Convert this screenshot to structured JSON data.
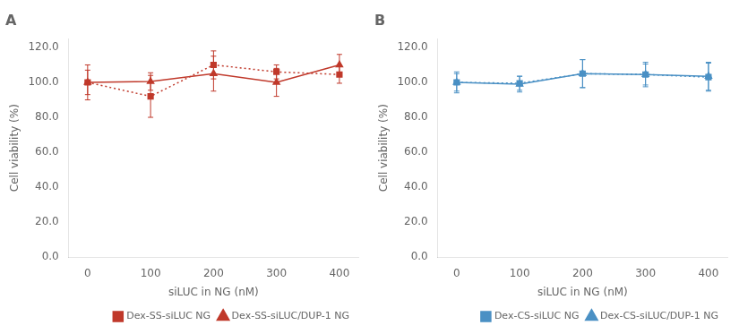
{
  "chart_data": [
    {
      "type": "line",
      "title": "A",
      "x": [
        0,
        100,
        200,
        300,
        400
      ],
      "xlabel": "siLUC in NG (nM)",
      "ylabel": "Cell viability (%)",
      "xlim": [
        -30,
        430
      ],
      "xticks": [
        0,
        100,
        200,
        300,
        400
      ],
      "ylim": [
        0.0,
        125.0
      ],
      "yticks": [
        {
          "value": 0,
          "label": "0.0"
        },
        {
          "value": 20,
          "label": "20.0"
        },
        {
          "value": 40,
          "label": "40.0"
        },
        {
          "value": 60,
          "label": "60.0"
        },
        {
          "value": 80,
          "label": "80.0"
        },
        {
          "value": 100,
          "label": "100.0"
        },
        {
          "value": 120,
          "label": "120.0"
        }
      ],
      "grid": false,
      "legend": "lower right",
      "series": [
        {
          "name": "Dex-SS-siLUC NG",
          "color": "#c0392b",
          "marker": "square",
          "line_style": "dotted",
          "values": [
            100.0,
            92.0,
            110.0,
            106.0,
            104.5
          ],
          "yerr": [
            10.0,
            12.0,
            8.0,
            4.0,
            5.0
          ]
        },
        {
          "name": "Dex-SS-siLUC/DUP-1 NG",
          "color": "#c0392b",
          "marker": "triangle",
          "line_style": "solid",
          "values": [
            100.0,
            100.5,
            105.0,
            100.0,
            110.0
          ],
          "yerr": [
            7.0,
            5.0,
            10.0,
            8.0,
            6.0
          ]
        }
      ]
    },
    {
      "type": "line",
      "title": "B",
      "x": [
        0,
        100,
        200,
        300,
        400
      ],
      "xlabel": "siLUC in NG (nM)",
      "ylabel": "Cell viability (%)",
      "xlim": [
        -30,
        430
      ],
      "xticks": [
        0,
        100,
        200,
        300,
        400
      ],
      "ylim": [
        0.0,
        125.0
      ],
      "yticks": [
        {
          "value": 0,
          "label": "0.0"
        },
        {
          "value": 20,
          "label": "20.0"
        },
        {
          "value": 40,
          "label": "40.0"
        },
        {
          "value": 60,
          "label": "60.0"
        },
        {
          "value": 80,
          "label": "80.0"
        },
        {
          "value": 100,
          "label": "100.0"
        },
        {
          "value": 120,
          "label": "120.0"
        }
      ],
      "grid": false,
      "legend": "lower right",
      "series": [
        {
          "name": "Dex-CS-siLUC NG",
          "color": "#4a90c4",
          "marker": "square",
          "line_style": "dotted",
          "values": [
            100.0,
            99.5,
            105.0,
            104.5,
            103.0
          ],
          "yerr": [
            6.0,
            4.0,
            8.0,
            6.0,
            8.0
          ]
        },
        {
          "name": "Dex-CS-siLUC/DUP-1 NG",
          "color": "#4a90c4",
          "marker": "triangle",
          "line_style": "solid",
          "values": [
            100.0,
            99.0,
            105.0,
            104.5,
            103.5
          ],
          "yerr": [
            5.0,
            4.5,
            8.0,
            7.0,
            8.0
          ]
        }
      ]
    }
  ]
}
